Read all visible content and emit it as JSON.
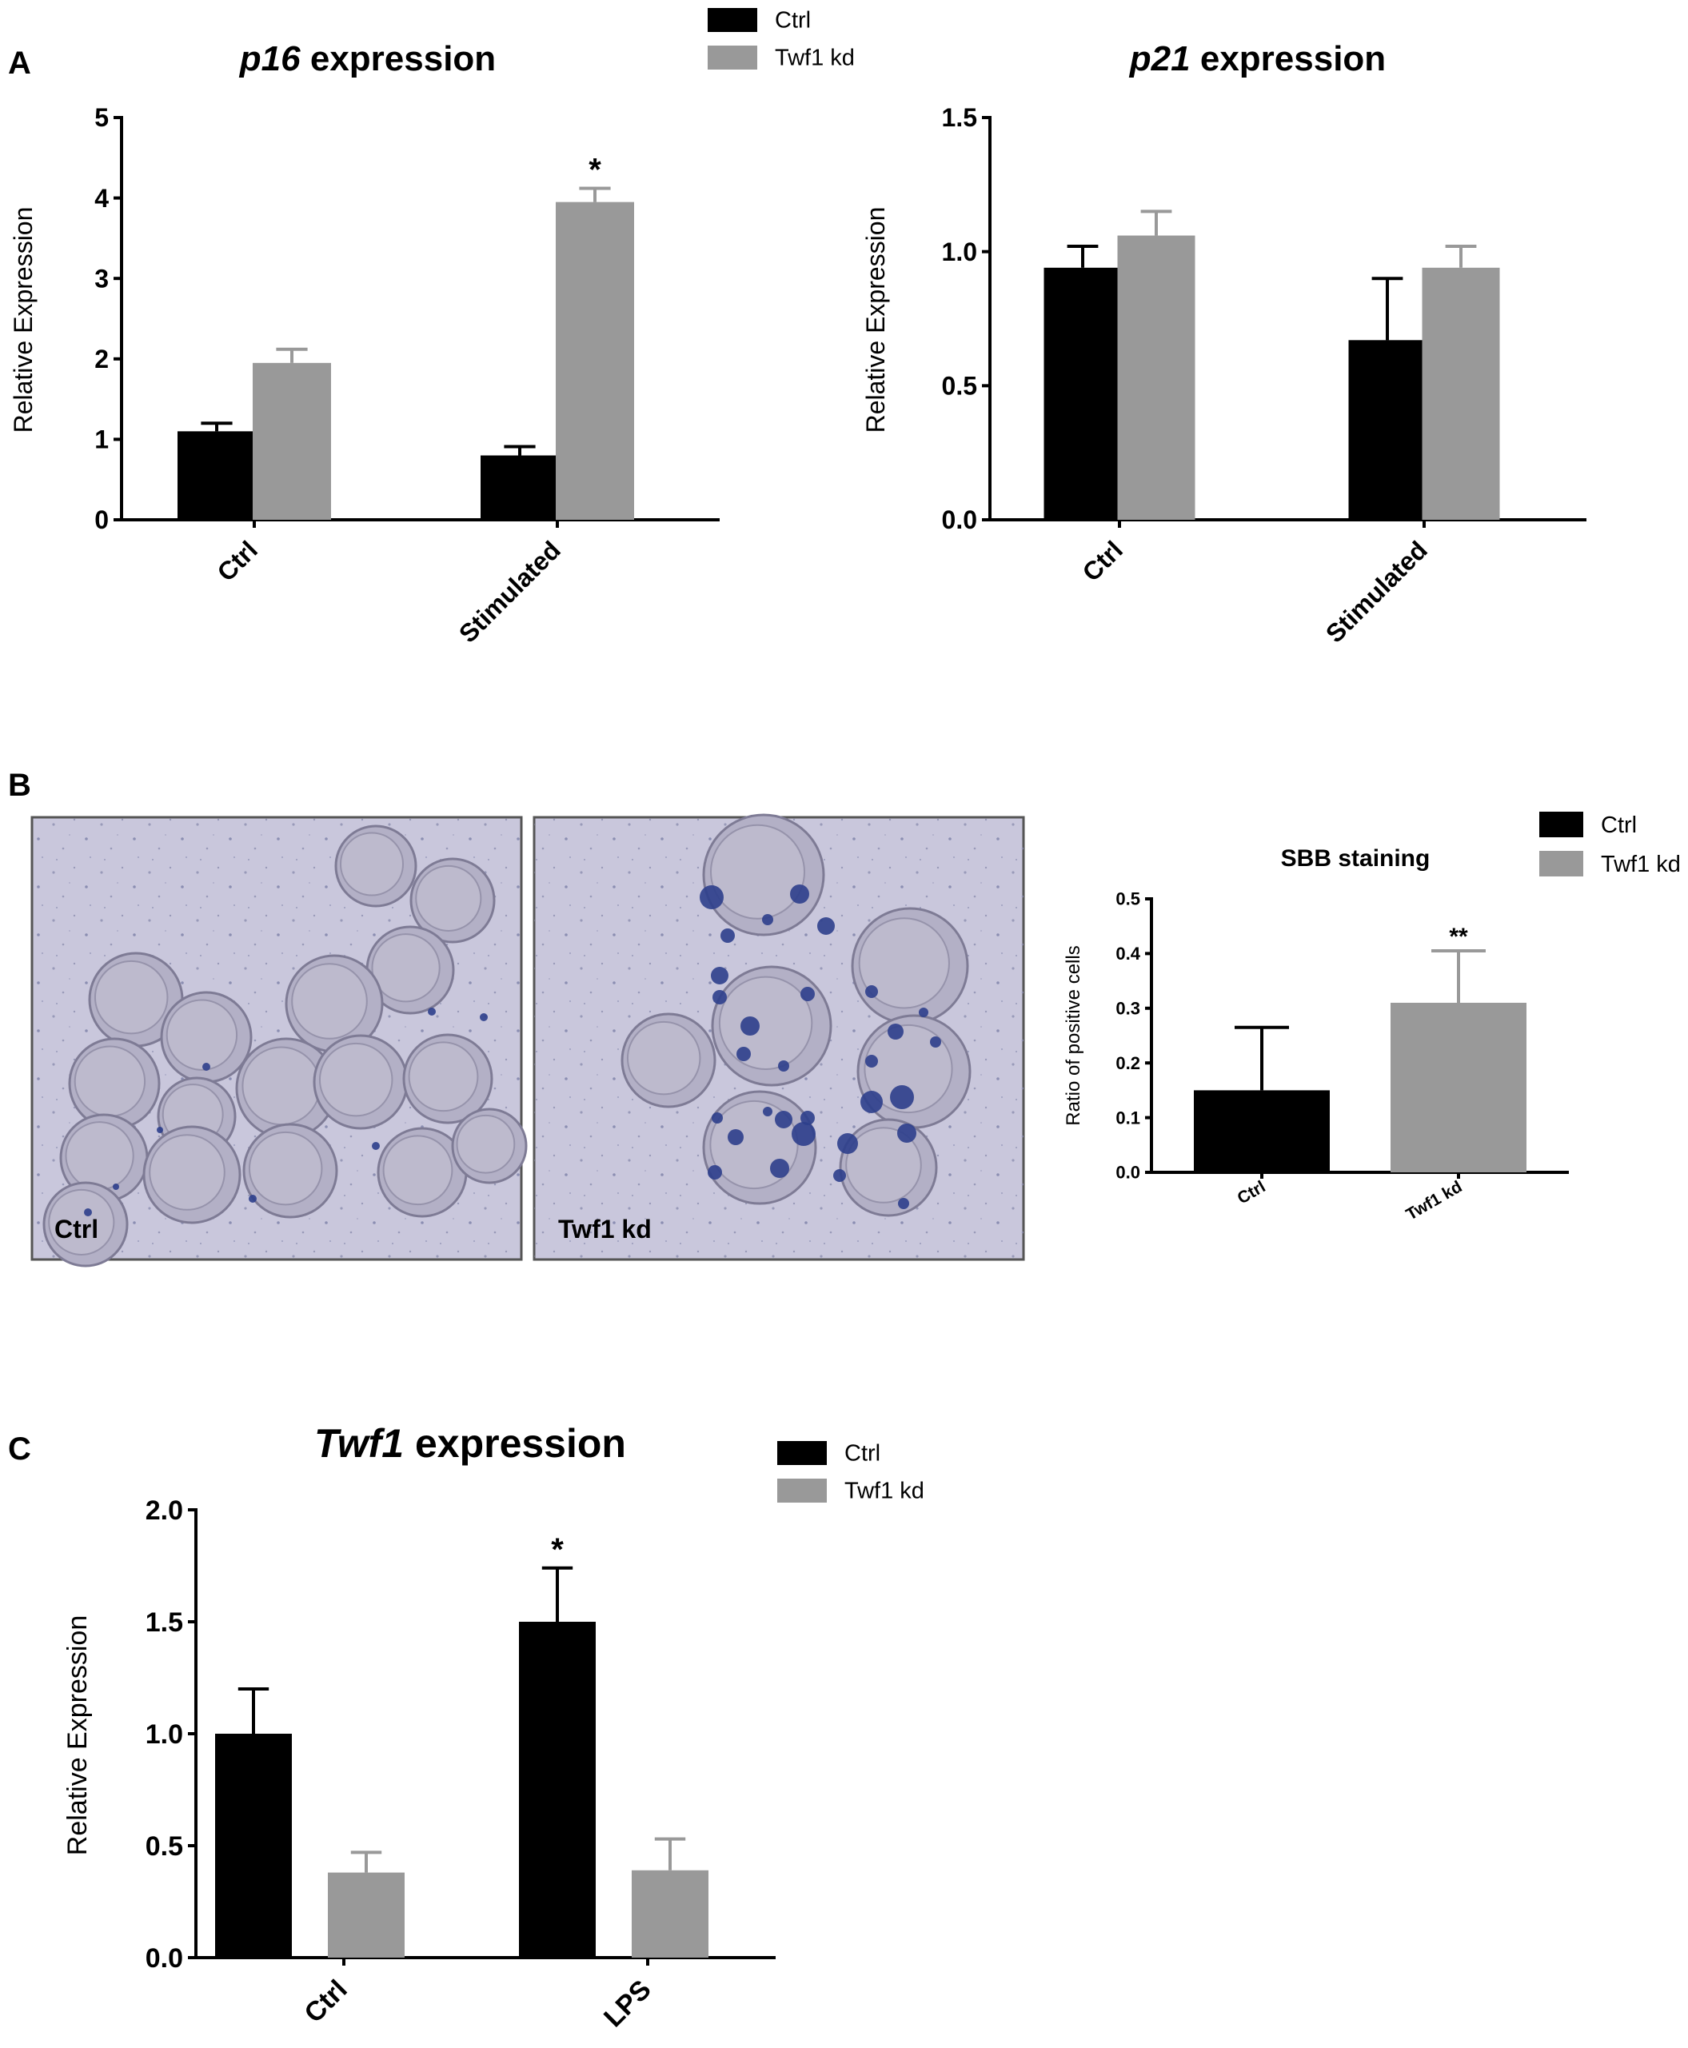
{
  "panels": {
    "A": "A",
    "B": "B",
    "C": "C"
  },
  "colors": {
    "ctrl": "#000000",
    "twf1_kd": "#999999",
    "micrograph_bg": "#c7c5da",
    "cell_stain": "#2d3f8c"
  },
  "micrographs": {
    "left_label": "Ctrl",
    "right_label": "Twf1 kd"
  },
  "chart_data": [
    {
      "id": "p16",
      "type": "bar",
      "title_italic": "p16",
      "title_rest": " expression",
      "ylabel": "Relative Expression",
      "categories": [
        "Ctrl",
        "Stimulated"
      ],
      "ylim": [
        0,
        5
      ],
      "yticks": [
        "0",
        "1",
        "2",
        "3",
        "4",
        "5"
      ],
      "legend": [
        "Ctrl",
        "Twf1 kd"
      ],
      "series": [
        {
          "name": "Ctrl",
          "values": [
            1.1,
            0.8
          ],
          "errors": [
            0.1,
            0.11
          ]
        },
        {
          "name": "Twf1 kd",
          "values": [
            1.95,
            3.95
          ],
          "errors": [
            0.17,
            0.17
          ]
        }
      ],
      "annotations": [
        {
          "text": "*",
          "category": 1,
          "series": 1
        }
      ]
    },
    {
      "id": "p21",
      "type": "bar",
      "title_italic": "p21",
      "title_rest": " expression",
      "ylabel": "Relative Expression",
      "categories": [
        "Ctrl",
        "Stimulated"
      ],
      "ylim": [
        0,
        1.5
      ],
      "yticks": [
        "0.0",
        "0.5",
        "1.0",
        "1.5"
      ],
      "series": [
        {
          "name": "Ctrl",
          "values": [
            0.94,
            0.67
          ],
          "errors": [
            0.08,
            0.23
          ]
        },
        {
          "name": "Twf1 kd",
          "values": [
            1.06,
            0.94
          ],
          "errors": [
            0.09,
            0.08
          ]
        }
      ],
      "annotations": []
    },
    {
      "id": "sbb",
      "type": "bar",
      "title": "SBB staining",
      "ylabel": "Ratio of positive cells",
      "categories": [
        "Ctrl",
        "Twf1 kd"
      ],
      "ylim": [
        0,
        0.5
      ],
      "yticks": [
        "0.0",
        "0.1",
        "0.2",
        "0.3",
        "0.4",
        "0.5"
      ],
      "legend": [
        "Ctrl",
        "Twf1 kd"
      ],
      "bars": [
        {
          "category": "Ctrl",
          "series": "Ctrl",
          "value": 0.15,
          "error": 0.115
        },
        {
          "category": "Twf1 kd",
          "series": "Twf1 kd",
          "value": 0.31,
          "error": 0.095
        }
      ],
      "annotations": [
        {
          "text": "**",
          "bar": 1
        }
      ]
    },
    {
      "id": "twf1",
      "type": "bar",
      "title_italic": "Twf1",
      "title_rest": " expression",
      "ylabel": "Relative Expression",
      "categories": [
        "Ctrl",
        "LPS"
      ],
      "ylim": [
        0,
        2.0
      ],
      "yticks": [
        "0.0",
        "0.5",
        "1.0",
        "1.5",
        "2.0"
      ],
      "legend": [
        "Ctrl",
        "Twf1 kd"
      ],
      "series": [
        {
          "name": "Ctrl",
          "values": [
            1.0,
            1.5
          ],
          "errors": [
            0.2,
            0.24
          ]
        },
        {
          "name": "Twf1 kd",
          "values": [
            0.38,
            0.39
          ],
          "errors": [
            0.09,
            0.14
          ]
        }
      ],
      "annotations": [
        {
          "text": "*",
          "category": 1,
          "series": 0
        }
      ]
    }
  ]
}
